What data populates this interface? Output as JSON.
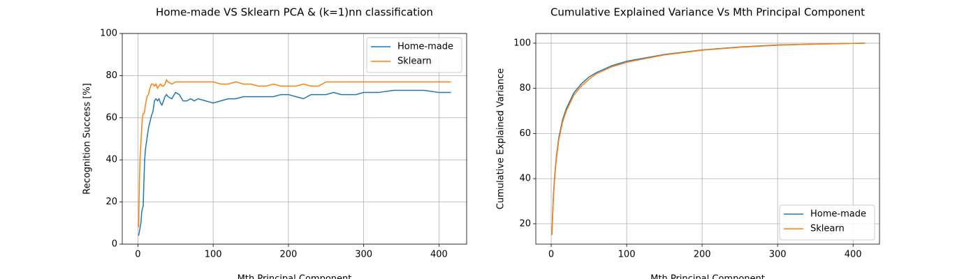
{
  "chart_data": [
    {
      "type": "line",
      "title": "Home-made VS Sklearn PCA & (k=1)nn classification",
      "x_label": "Mth Principal Component",
      "y_label": "Recognition Success [%]",
      "x": [
        1,
        2,
        3,
        4,
        5,
        6,
        7,
        8,
        9,
        10,
        12,
        14,
        16,
        18,
        20,
        22,
        24,
        26,
        28,
        30,
        32,
        34,
        36,
        38,
        40,
        45,
        50,
        55,
        60,
        65,
        70,
        75,
        80,
        90,
        100,
        110,
        120,
        130,
        140,
        150,
        160,
        170,
        180,
        190,
        200,
        210,
        220,
        230,
        240,
        250,
        260,
        270,
        280,
        290,
        300,
        320,
        340,
        360,
        380,
        400,
        416
      ],
      "series": [
        {
          "name": "Home-made",
          "color": "#1f77b4",
          "values": [
            4,
            6,
            8,
            10,
            15,
            17,
            18,
            30,
            40,
            45,
            50,
            55,
            58,
            61,
            63,
            68,
            69,
            68,
            69,
            67,
            66,
            68,
            70,
            71,
            70,
            69,
            72,
            71,
            68,
            68,
            69,
            68,
            69,
            68,
            67,
            68,
            69,
            69,
            70,
            70,
            70,
            70,
            70,
            71,
            71,
            70,
            69,
            71,
            71,
            71,
            72,
            71,
            71,
            71,
            72,
            72,
            73,
            73,
            73,
            72,
            72
          ]
        },
        {
          "name": "Sklearn",
          "color": "#ff7f0e",
          "values": [
            8,
            30,
            42,
            48,
            55,
            60,
            62,
            62,
            63,
            66,
            70,
            71,
            74,
            76,
            76,
            75,
            76,
            74,
            75,
            76,
            75,
            75,
            76,
            78,
            77,
            76,
            77,
            77,
            77,
            77,
            77,
            77,
            77,
            77,
            77,
            76,
            76,
            77,
            76,
            76,
            75,
            75,
            76,
            75,
            75,
            75,
            76,
            75,
            75,
            77,
            77,
            77,
            77,
            77,
            77,
            77,
            77,
            77,
            77,
            77,
            77
          ]
        }
      ],
      "xlim": [
        -20.8,
        436.8
      ],
      "ylim": [
        0,
        100
      ],
      "xticks": [
        0,
        100,
        200,
        300,
        400
      ],
      "yticks": [
        0,
        20,
        40,
        60,
        80,
        100
      ],
      "grid": true,
      "legend": "upper-right"
    },
    {
      "type": "line",
      "title": "Cumulative Explained Variance Vs Mth Principal Component",
      "x_label": "Mth Principal Component",
      "y_label": "Cumulative Explained Variance",
      "x": [
        1,
        2,
        3,
        5,
        7,
        10,
        15,
        20,
        30,
        40,
        50,
        60,
        80,
        100,
        125,
        150,
        200,
        250,
        300,
        350,
        416
      ],
      "series": [
        {
          "name": "Home-made",
          "color": "#1f77b4",
          "values": [
            15.5,
            25,
            33,
            43,
            50,
            58,
            66,
            71,
            78,
            82,
            85,
            87,
            90,
            92,
            93.5,
            95,
            97,
            98.3,
            99.2,
            99.6,
            100
          ]
        },
        {
          "name": "Sklearn",
          "color": "#ff7f0e",
          "values": [
            15,
            24,
            32,
            42,
            49,
            57,
            65,
            70,
            77,
            81,
            84,
            86.5,
            89.5,
            91.5,
            93.2,
            94.8,
            96.9,
            98.2,
            99.1,
            99.6,
            100
          ]
        }
      ],
      "xlim": [
        -20.4,
        435
      ],
      "ylim": [
        11.0,
        104.3
      ],
      "xticks": [
        0,
        100,
        200,
        300,
        400
      ],
      "yticks": [
        20,
        40,
        60,
        80,
        100
      ],
      "grid": true,
      "legend": "lower-right"
    }
  ]
}
